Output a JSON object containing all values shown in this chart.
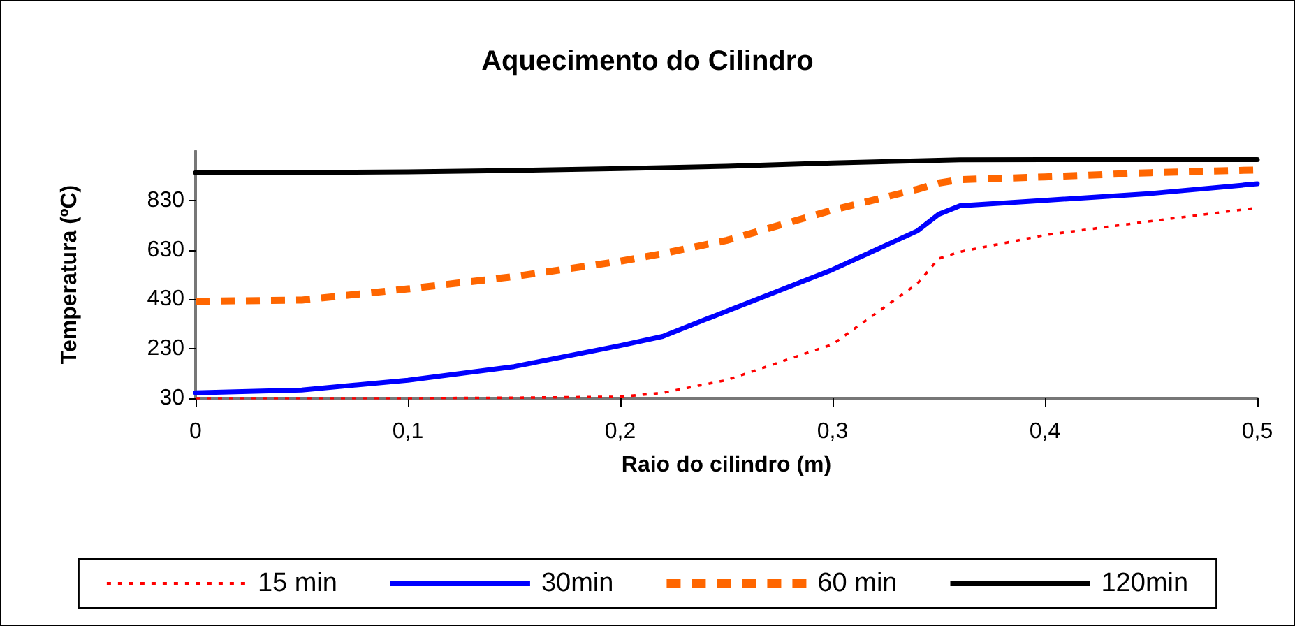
{
  "chart_data": {
    "type": "line",
    "title": "Aquecimento do Cilindro",
    "xlabel": "Raio do cilindro (m)",
    "ylabel": "Temperatura (ºC)",
    "xlim": [
      0,
      0.5
    ],
    "xticks": [
      {
        "value": 0,
        "label": "0"
      },
      {
        "value": 0.1,
        "label": "0,1"
      },
      {
        "value": 0.2,
        "label": "0,2"
      },
      {
        "value": 0.3,
        "label": "0,3"
      },
      {
        "value": 0.4,
        "label": "0,4"
      },
      {
        "value": 0.5,
        "label": "0,5"
      }
    ],
    "ylim": [
      30,
      1030
    ],
    "yticks": [
      30,
      230,
      430,
      630,
      830
    ],
    "grid": false,
    "legend": "bottom",
    "marker": "none",
    "x": [
      0,
      0.05,
      0.1,
      0.15,
      0.2,
      0.22,
      0.25,
      0.3,
      0.34,
      0.35,
      0.36,
      0.4,
      0.45,
      0.5
    ],
    "series": [
      {
        "name": "15 min",
        "color": "#ff0000",
        "line_style": "dotted",
        "values": [
          30,
          30,
          30,
          32,
          36,
          52,
          103,
          248,
          494,
          595,
          622,
          690,
          746,
          800
        ]
      },
      {
        "name": "30min",
        "color": "#0000ff",
        "line_style": "solid",
        "values": [
          52,
          63,
          103,
          158,
          243,
          280,
          382,
          550,
          707,
          774,
          808,
          830,
          858,
          897
        ]
      },
      {
        "name": "60 min",
        "color": "#ff6600",
        "line_style": "dashed",
        "values": [
          422,
          427,
          472,
          522,
          584,
          615,
          668,
          791,
          875,
          900,
          914,
          925,
          942,
          953
        ]
      },
      {
        "name": "120min",
        "color": "#000000",
        "line_style": "solid",
        "values": [
          942,
          943,
          945,
          951,
          959,
          962,
          968,
          981,
          990,
          992,
          994,
          995,
          995,
          995
        ]
      }
    ]
  }
}
